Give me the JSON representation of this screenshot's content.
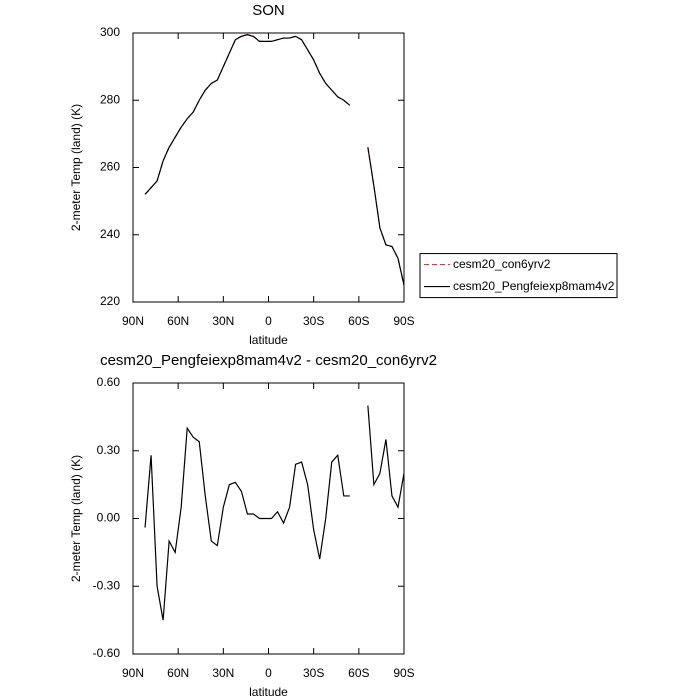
{
  "chart_data": [
    {
      "type": "line",
      "title": "SON",
      "xlabel": "latitude",
      "ylabel": "2-meter Temp (land) (K)",
      "x": [
        82,
        78,
        74,
        70,
        66,
        62,
        58,
        54,
        50,
        46,
        42,
        38,
        34,
        30,
        26,
        22,
        18,
        14,
        10,
        6,
        2,
        -2,
        -6,
        -10,
        -14,
        -18,
        -22,
        -26,
        -30,
        -34,
        -38,
        -42,
        -46,
        -50,
        -54,
        -58,
        -62,
        -66,
        -70,
        -74,
        -78,
        -82,
        -86,
        -90
      ],
      "xlim": [
        90,
        -90
      ],
      "xticks": [
        {
          "value": 90,
          "label": "90N"
        },
        {
          "value": 60,
          "label": "60N"
        },
        {
          "value": 30,
          "label": "30N"
        },
        0,
        {
          "value": -30,
          "label": "30S"
        },
        {
          "value": -60,
          "label": "60S"
        },
        {
          "value": -90,
          "label": "90S"
        }
      ],
      "ylim": [
        220,
        300
      ],
      "yticks": [
        220,
        240,
        260,
        280,
        300
      ],
      "legend": "right",
      "series": [
        {
          "name": "cesm20_con6yrv2",
          "color": "#e8312f",
          "style": "dashed",
          "values": [
            252,
            254,
            256,
            262,
            266,
            269,
            272,
            274.5,
            276.5,
            280,
            283,
            285,
            286,
            290,
            294,
            298,
            299,
            299.5,
            299,
            297.5,
            297.5,
            297.5,
            298,
            298.5,
            298.5,
            299,
            298,
            295,
            292,
            288,
            285,
            283,
            281,
            280,
            278.5,
            null,
            null,
            266,
            254.5,
            242,
            237,
            236.5,
            233,
            225
          ]
        },
        {
          "name": "cesm20_Pengfeiexp8mam4v2",
          "color": "#000000",
          "style": "solid",
          "values": [
            252,
            254,
            256,
            262,
            266,
            269,
            272,
            274.5,
            276.5,
            280,
            283,
            285,
            286,
            290,
            294,
            298,
            299,
            299.5,
            299,
            297.5,
            297.5,
            297.5,
            298,
            298.5,
            298.5,
            299,
            298,
            295,
            292,
            288,
            285,
            283,
            281,
            280,
            278.5,
            null,
            null,
            266,
            254.5,
            242,
            237,
            236.5,
            233,
            225
          ]
        }
      ]
    },
    {
      "type": "line",
      "title": "cesm20_Pengfeiexp8mam4v2 - cesm20_con6yrv2",
      "xlabel": "latitude",
      "ylabel": "2-meter Temp (land) (K)",
      "x": [
        82,
        78,
        74,
        70,
        66,
        62,
        58,
        54,
        50,
        46,
        42,
        38,
        34,
        30,
        26,
        22,
        18,
        14,
        10,
        6,
        2,
        -2,
        -6,
        -10,
        -14,
        -18,
        -22,
        -26,
        -30,
        -34,
        -38,
        -42,
        -46,
        -50,
        -54,
        -58,
        -62,
        -66,
        -70,
        -74,
        -78,
        -82,
        -86,
        -90
      ],
      "xlim": [
        90,
        -90
      ],
      "xticks": [
        {
          "value": 90,
          "label": "90N"
        },
        {
          "value": 60,
          "label": "60N"
        },
        {
          "value": 30,
          "label": "30N"
        },
        0,
        {
          "value": -30,
          "label": "30S"
        },
        {
          "value": -60,
          "label": "60S"
        },
        {
          "value": -90,
          "label": "90S"
        }
      ],
      "ylim": [
        -0.6,
        0.6
      ],
      "yticks": [
        {
          "value": -0.6,
          "label": "-0.60"
        },
        {
          "value": -0.3,
          "label": "-0.30"
        },
        {
          "value": 0,
          "label": "0.00"
        },
        {
          "value": 0.3,
          "label": "0.30"
        },
        {
          "value": 0.6,
          "label": "0.60"
        }
      ],
      "series": [
        {
          "color": "#000000",
          "style": "solid",
          "values": [
            -0.04,
            0.28,
            -0.3,
            -0.45,
            -0.1,
            -0.15,
            0.05,
            0.4,
            0.36,
            0.34,
            0.1,
            -0.1,
            -0.12,
            0.05,
            0.15,
            0.16,
            0.12,
            0.02,
            0.02,
            0,
            0,
            0,
            0.03,
            -0.02,
            0.05,
            0.24,
            0.25,
            0.15,
            -0.05,
            -0.18,
            0,
            0.25,
            0.28,
            0.1,
            0.1,
            null,
            null,
            0.5,
            0.15,
            0.2,
            0.35,
            0.1,
            0.05,
            0.2
          ]
        }
      ]
    }
  ]
}
